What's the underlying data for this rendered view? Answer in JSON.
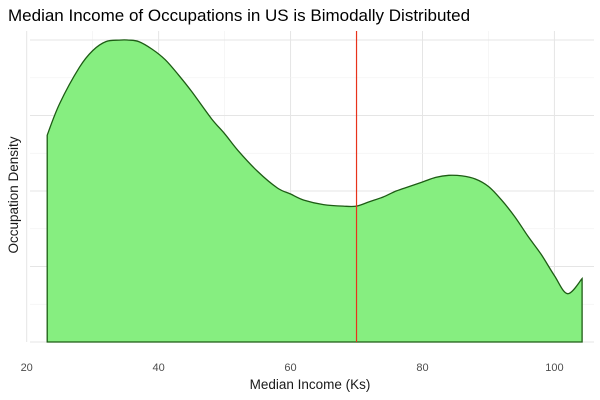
{
  "chart_data": {
    "type": "area",
    "title": "Median Income of Occupations in US is Bimodally Distributed",
    "xlabel": "Median Income (Ks)",
    "ylabel": "Occupation Density",
    "xlim": [
      20.5,
      106
    ],
    "ylim": [
      0,
      1.03
    ],
    "x_ticks": [
      20,
      40,
      60,
      80,
      100
    ],
    "y_ticks_shown": false,
    "grid": true,
    "fill_color": "#86ee80",
    "line_color": "#1d5c14",
    "vline": {
      "x": 70,
      "color": "#e8321b"
    },
    "density": {
      "x": [
        23.1,
        25,
        28,
        30,
        32,
        34,
        35.5,
        37,
        39,
        41,
        43,
        45,
        48,
        50,
        52,
        55,
        58,
        60,
        62,
        65,
        68,
        70,
        72,
        74,
        76,
        78,
        80,
        82,
        84,
        86,
        88,
        90,
        92,
        94,
        96,
        98,
        100,
        102,
        104.2
      ],
      "y": [
        0.685,
        0.79,
        0.91,
        0.965,
        0.995,
        1.0,
        1.0,
        0.995,
        0.97,
        0.935,
        0.885,
        0.83,
        0.74,
        0.69,
        0.635,
        0.565,
        0.51,
        0.49,
        0.47,
        0.455,
        0.45,
        0.45,
        0.465,
        0.48,
        0.5,
        0.515,
        0.53,
        0.545,
        0.552,
        0.55,
        0.54,
        0.515,
        0.47,
        0.415,
        0.35,
        0.29,
        0.22,
        0.16,
        0.21
      ]
    }
  }
}
